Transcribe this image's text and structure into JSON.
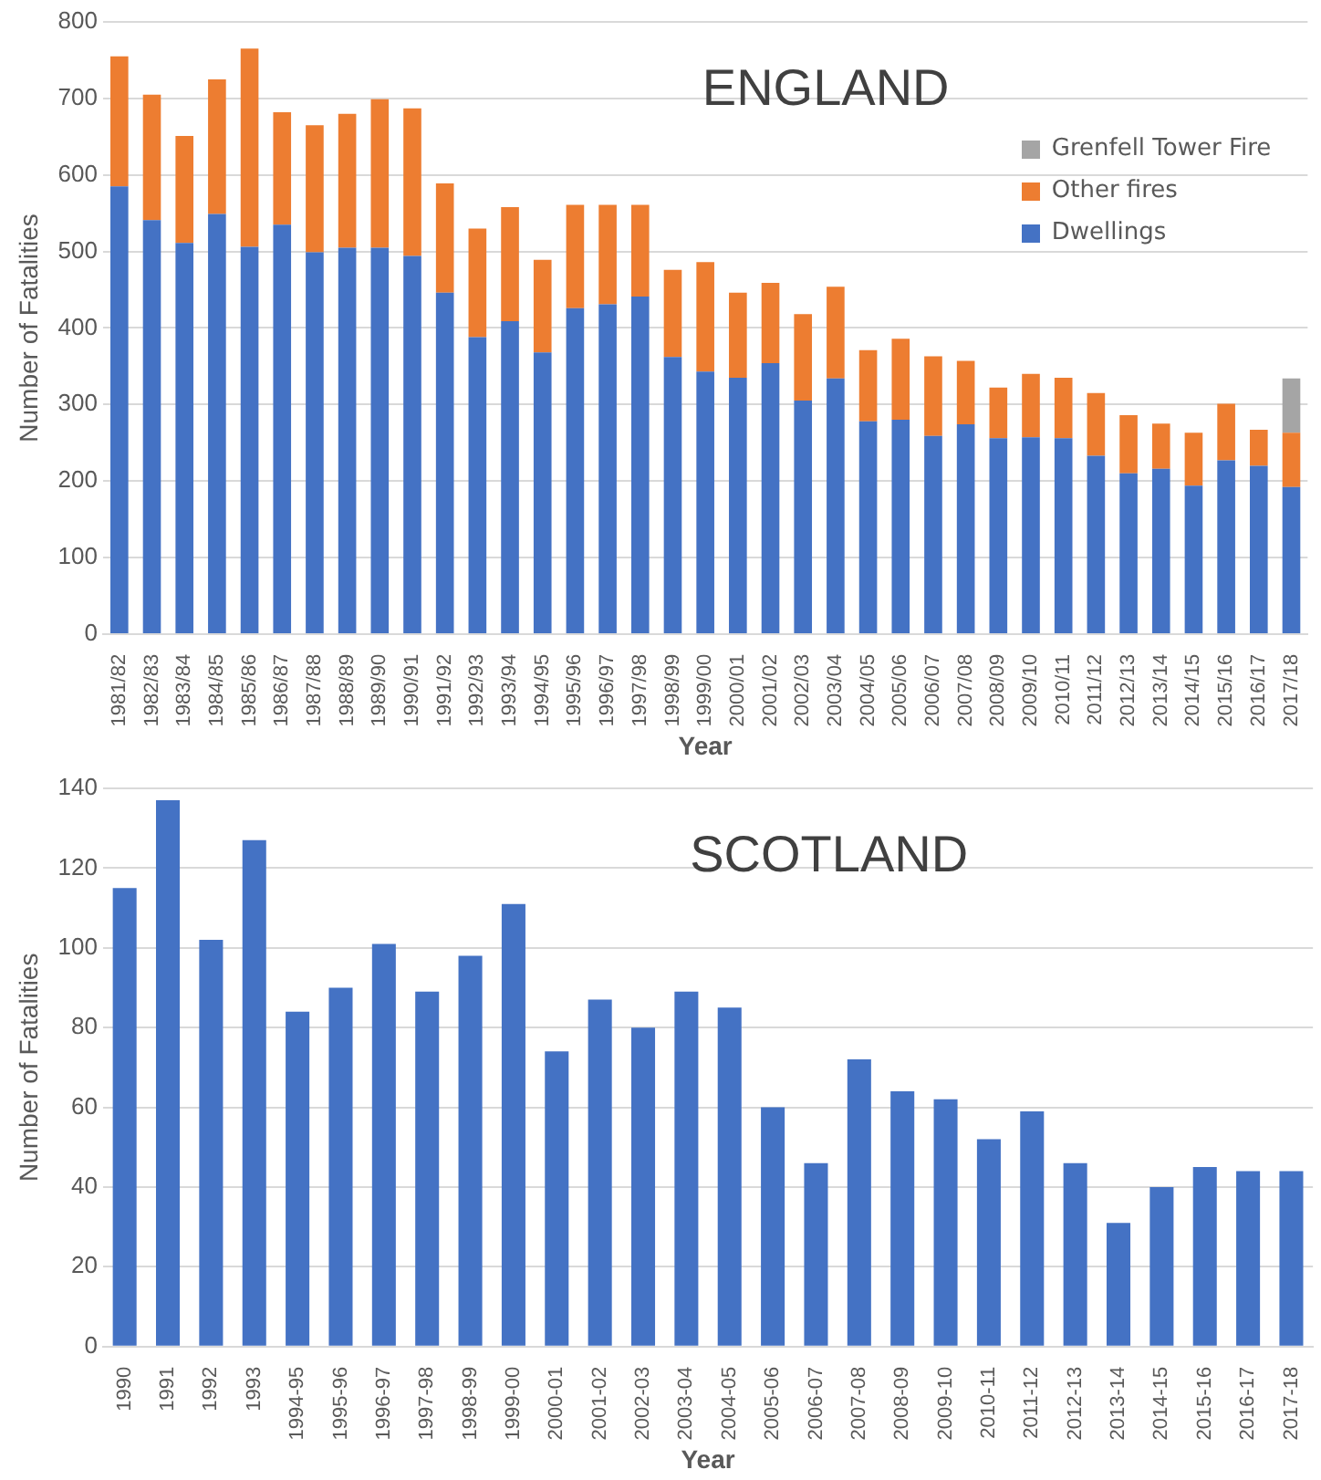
{
  "chart_data": [
    {
      "type": "bar",
      "title": "ENGLAND",
      "xlabel": "Year",
      "ylabel": "Number of Fatalities",
      "stacked": true,
      "legend": "top right",
      "grid": "y",
      "categories": [
        "1981/82",
        "1982/83",
        "1983/84",
        "1984/85",
        "1985/86",
        "1986/87",
        "1987/88",
        "1988/89",
        "1989/90",
        "1990/91",
        "1991/92",
        "1992/93",
        "1993/94",
        "1994/95",
        "1995/96",
        "1996/97",
        "1997/98",
        "1998/99",
        "1999/00",
        "2000/01",
        "2001/02",
        "2002/03",
        "2003/04",
        "2004/05",
        "2005/06",
        "2006/07",
        "2007/08",
        "2008/09",
        "2009/10",
        "2010/11",
        "2011/12",
        "2012/13",
        "2013/14",
        "2014/15",
        "2015/16",
        "2016/17",
        "2017/18"
      ],
      "series": [
        {
          "name": "Dwellings",
          "color": "#4472c4",
          "values": [
            585,
            541,
            511,
            549,
            506,
            535,
            499,
            505,
            505,
            494,
            446,
            388,
            409,
            368,
            426,
            431,
            441,
            362,
            343,
            335,
            354,
            305,
            334,
            278,
            280,
            259,
            274,
            256,
            257,
            256,
            233,
            210,
            216,
            194,
            227,
            220,
            192
          ]
        },
        {
          "name": "Other fires",
          "color": "#ed7d31",
          "values": [
            170,
            164,
            140,
            176,
            259,
            147,
            166,
            175,
            194,
            193,
            143,
            142,
            149,
            121,
            135,
            130,
            120,
            114,
            143,
            111,
            105,
            113,
            120,
            93,
            106,
            104,
            83,
            66,
            83,
            79,
            82,
            76,
            59,
            69,
            74,
            47,
            71
          ]
        },
        {
          "name": "Grenfell Tower Fire",
          "color": "#a5a5a5",
          "values": [
            null,
            null,
            null,
            null,
            null,
            null,
            null,
            null,
            null,
            null,
            null,
            null,
            null,
            null,
            null,
            null,
            null,
            null,
            null,
            null,
            null,
            null,
            null,
            null,
            null,
            null,
            null,
            null,
            null,
            null,
            null,
            null,
            null,
            null,
            null,
            null,
            71
          ]
        }
      ],
      "ylim": [
        0,
        800
      ],
      "yticks": [
        0,
        100,
        200,
        300,
        400,
        500,
        600,
        700,
        800
      ]
    },
    {
      "type": "bar",
      "title": "SCOTLAND",
      "xlabel": "Year",
      "ylabel": "Number of Fatalities",
      "grid": "y",
      "categories": [
        "1990",
        "1991",
        "1992",
        "1993",
        "1994-95",
        "1995-96",
        "1996-97",
        "1997-98",
        "1998-99",
        "1999-00",
        "2000-01",
        "2001-02",
        "2002-03",
        "2003-04",
        "2004-05",
        "2005-06",
        "2006-07",
        "2007-08",
        "2008-09",
        "2009-10",
        "2010-11",
        "2011-12",
        "2012-13",
        "2013-14",
        "2014-15",
        "2015-16",
        "2016-17",
        "2017-18"
      ],
      "series": [
        {
          "color": "#4472c4",
          "values": [
            115,
            137,
            102,
            127,
            84,
            90,
            101,
            89,
            98,
            111,
            74,
            87,
            80,
            89,
            85,
            60,
            46,
            72,
            64,
            62,
            52,
            59,
            46,
            31,
            40,
            45,
            44,
            44
          ]
        }
      ],
      "ylim": [
        0,
        140
      ],
      "yticks": [
        0,
        20,
        40,
        60,
        80,
        100,
        120,
        140
      ]
    }
  ]
}
